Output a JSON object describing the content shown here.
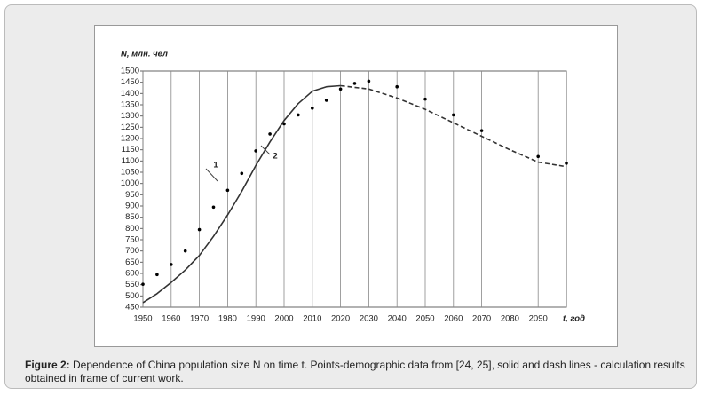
{
  "chart_data": {
    "type": "line",
    "y_label": "N, млн. чел",
    "x_label": "t, год",
    "xlim": [
      1950,
      2100
    ],
    "xticks": [
      1950,
      1960,
      1970,
      1980,
      1990,
      2000,
      2010,
      2020,
      2030,
      2040,
      2050,
      2060,
      2070,
      2080,
      2090
    ],
    "ylim": [
      450,
      1500
    ],
    "yticks": [
      450,
      500,
      550,
      600,
      650,
      700,
      750,
      800,
      850,
      900,
      950,
      1000,
      1050,
      1100,
      1150,
      1200,
      1250,
      1300,
      1350,
      1400,
      1450,
      1500
    ],
    "grid": "x",
    "series": [
      {
        "style": "points",
        "color": "#000000",
        "x": [
          1950,
          1955,
          1960,
          1965,
          1970,
          1975,
          1980,
          1985,
          1990,
          1995,
          2000,
          2005,
          2010,
          2015,
          2020,
          2025,
          2030,
          2040,
          2050,
          2060,
          2070,
          2090,
          2100
        ],
        "values": [
          552,
          595,
          640,
          700,
          795,
          895,
          970,
          1045,
          1145,
          1220,
          1265,
          1305,
          1335,
          1370,
          1420,
          1445,
          1455,
          1430,
          1375,
          1305,
          1235,
          1120,
          1090
        ]
      },
      {
        "style": "solid",
        "color": "#333333",
        "x": [
          1950,
          1955,
          1960,
          1965,
          1970,
          1975,
          1980,
          1985,
          1990,
          1995,
          2000,
          2005,
          2010,
          2015,
          2020
        ],
        "values": [
          470,
          510,
          560,
          615,
          680,
          765,
          860,
          965,
          1080,
          1185,
          1280,
          1355,
          1410,
          1430,
          1435
        ]
      },
      {
        "style": "dashed",
        "color": "#333333",
        "x": [
          2020,
          2030,
          2040,
          2050,
          2060,
          2070,
          2080,
          2090,
          2100
        ],
        "values": [
          1435,
          1420,
          1380,
          1330,
          1270,
          1210,
          1150,
          1095,
          1075
        ]
      }
    ],
    "annotations": [
      "1",
      "2"
    ]
  },
  "caption": {
    "label": "Figure 2:",
    "text": " Dependence of China population size N on time t. Points-demographic data from [24, 25], solid and dash lines - calculation results obtained in frame of current work."
  }
}
